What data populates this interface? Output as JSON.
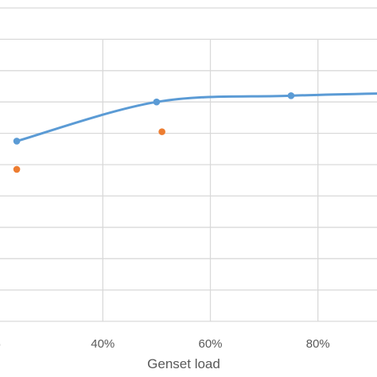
{
  "chart_data": {
    "type": "line",
    "xlabel": "Genset load",
    "ylabel": "",
    "title": "",
    "xlim": [
      0.2,
      1.0
    ],
    "ylim": [
      0,
      1
    ],
    "x_ticks": [
      {
        "value": 0.2,
        "label": "%"
      },
      {
        "value": 0.4,
        "label": "40%"
      },
      {
        "value": 0.6,
        "label": "60%"
      },
      {
        "value": 0.8,
        "label": "80%"
      }
    ],
    "y_grid_count": 10,
    "grid": true,
    "series": [
      {
        "type": "line",
        "color": "#5b9bd5",
        "smooth": true,
        "points": [
          {
            "x": 0.24,
            "y": 0.575
          },
          {
            "x": 0.5,
            "y": 0.7
          },
          {
            "x": 0.75,
            "y": 0.72
          },
          {
            "x": 1.0,
            "y": 0.73
          }
        ]
      },
      {
        "type": "scatter",
        "color": "#ed7d31",
        "points": [
          {
            "x": 0.24,
            "y": 0.485
          },
          {
            "x": 0.51,
            "y": 0.605
          }
        ]
      }
    ]
  }
}
